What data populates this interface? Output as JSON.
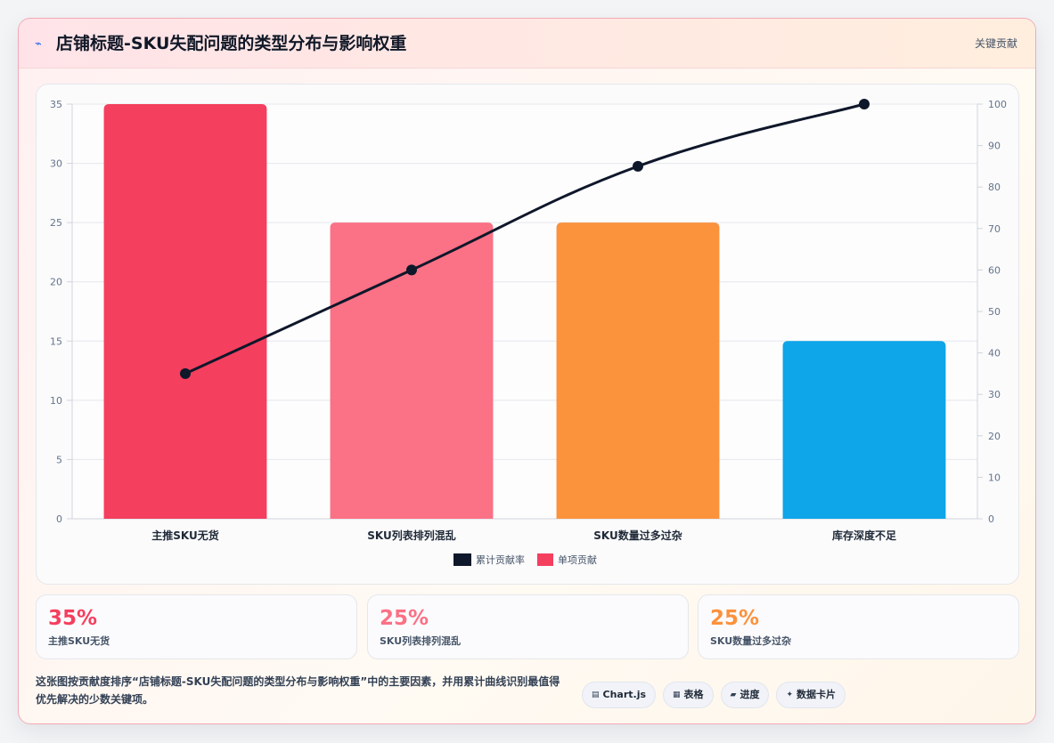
{
  "header": {
    "title": "店铺标题-SKU失配问题的类型分布与影响权重",
    "tag": "关键贡献",
    "icon": "sparkline-icon"
  },
  "chart_data": {
    "type": "bar",
    "categories": [
      "主推SKU无货",
      "SKU列表排列混乱",
      "SKU数量过多过杂",
      "库存深度不足"
    ],
    "series": [
      {
        "name": "单项贡献",
        "type": "bar",
        "axis": "left",
        "values": [
          35,
          25,
          25,
          15
        ]
      },
      {
        "name": "累计贡献率",
        "type": "line",
        "axis": "right",
        "values": [
          35,
          60,
          85,
          100
        ]
      }
    ],
    "bar_colors": [
      "#f43f5e",
      "#fb7185",
      "#fb923c",
      "#0ea5e9"
    ],
    "line_color": "#0f172a",
    "y_left": {
      "ylim": [
        0,
        35
      ],
      "ticks": [
        0,
        5,
        10,
        15,
        20,
        25,
        30,
        35
      ]
    },
    "y_right": {
      "ylim": [
        0,
        100
      ],
      "ticks": [
        0,
        10,
        20,
        30,
        40,
        50,
        60,
        70,
        80,
        90,
        100
      ]
    },
    "grid": true,
    "legend_position": "bottom",
    "legend": [
      {
        "label": "累计贡献率",
        "color": "#0f172a"
      },
      {
        "label": "单项贡献",
        "color": "#f43f5e"
      }
    ]
  },
  "stats": [
    {
      "value": "35%",
      "label": "主推SKU无货",
      "color": "#f43f5e"
    },
    {
      "value": "25%",
      "label": "SKU列表排列混乱",
      "color": "#fb7185"
    },
    {
      "value": "25%",
      "label": "SKU数量过多过杂",
      "color": "#fb923c"
    }
  ],
  "footer": {
    "description": "这张图按贡献度排序“店铺标题-SKU失配问题的类型分布与影响权重”中的主要因素，并用累计曲线识别最值得优先解决的少数关键项。",
    "chips": [
      {
        "icon": "▤",
        "label": "Chart.js"
      },
      {
        "icon": "▦",
        "label": "表格"
      },
      {
        "icon": "▰",
        "label": "进度"
      },
      {
        "icon": "✦",
        "label": "数据卡片"
      }
    ]
  }
}
